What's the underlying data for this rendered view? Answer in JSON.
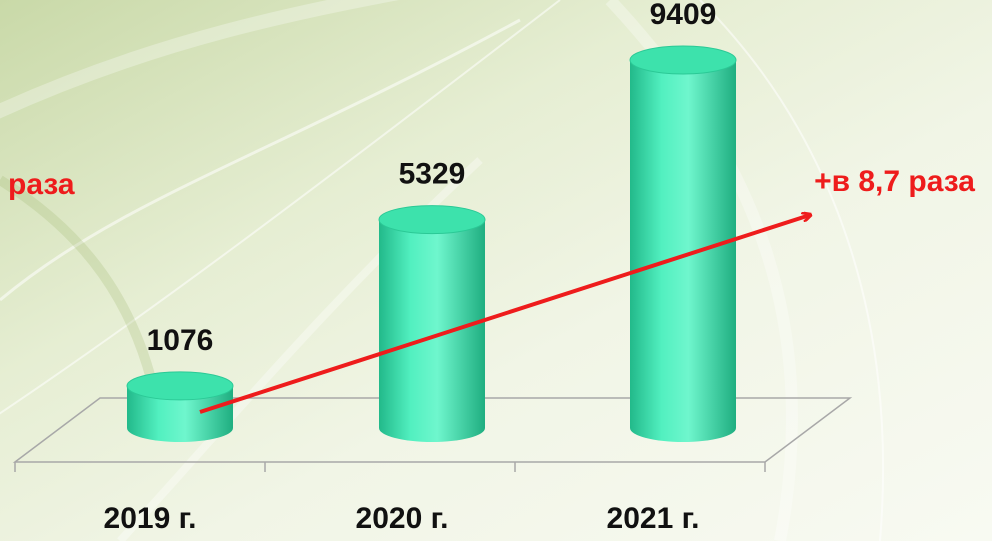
{
  "chart_data": {
    "type": "bar",
    "categories": [
      "2019 г.",
      "2020 г.",
      "2021 г."
    ],
    "values": [
      1076,
      5329,
      9409
    ],
    "color": "#3fe8b2",
    "annotations": [
      "раза",
      "+в 8,7 раза"
    ]
  }
}
